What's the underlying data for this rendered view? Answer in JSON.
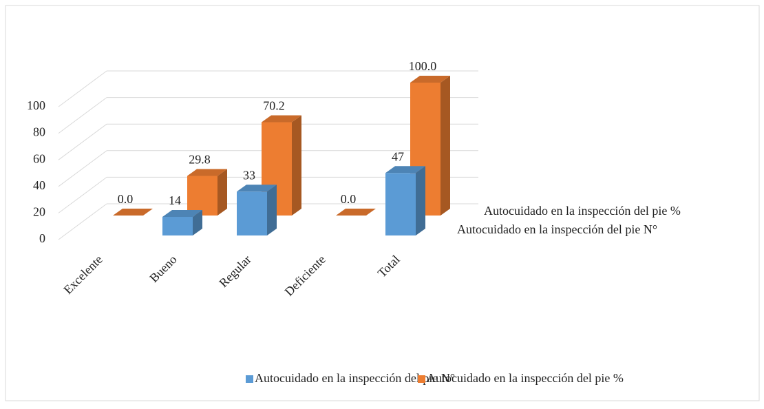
{
  "chart_data": {
    "type": "bar3d",
    "categories": [
      "Excelente",
      "Bueno",
      "Regular",
      "Deficiente",
      "Total"
    ],
    "series": [
      {
        "name": "Autocuidado en la inspección del pie N°",
        "color": "#5b9bd5",
        "values": [
          null,
          14,
          33,
          null,
          47
        ]
      },
      {
        "name": "Autocuidado en la inspección del pie %",
        "color": "#ed7d31",
        "values": [
          0,
          29.8,
          70.2,
          0,
          100
        ],
        "value_labels": [
          "0.0",
          "29.8",
          "70.2",
          "0.0",
          "100.0"
        ]
      }
    ],
    "ylim": [
      0,
      100
    ],
    "yticks": [
      0,
      20,
      40,
      60,
      80,
      100
    ],
    "grid": true,
    "legend": "bottom"
  }
}
